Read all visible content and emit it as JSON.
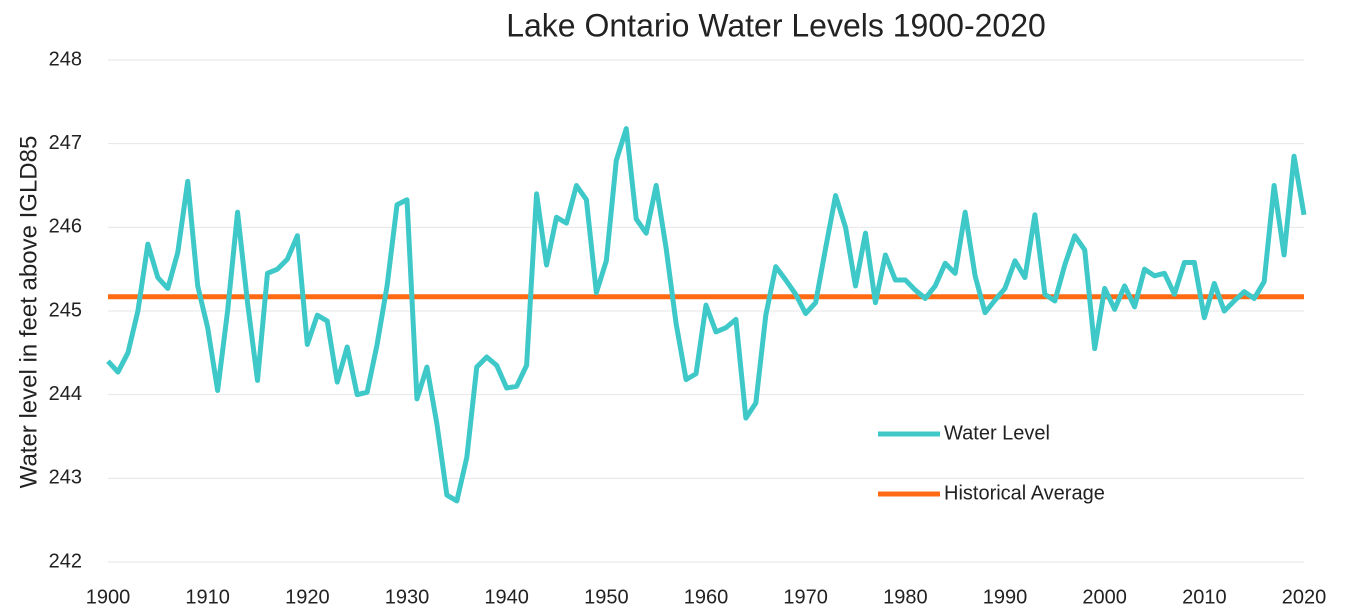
{
  "chart_data": {
    "type": "line",
    "title": "Lake Ontario Water Levels 1900-2020",
    "y_label": "Water level in feet above IGLD85",
    "x": [
      1900,
      1901,
      1902,
      1903,
      1904,
      1905,
      1906,
      1907,
      1908,
      1909,
      1910,
      1911,
      1912,
      1913,
      1914,
      1915,
      1916,
      1917,
      1918,
      1919,
      1920,
      1921,
      1922,
      1923,
      1924,
      1925,
      1926,
      1927,
      1928,
      1929,
      1930,
      1931,
      1932,
      1933,
      1934,
      1935,
      1936,
      1937,
      1938,
      1939,
      1940,
      1941,
      1942,
      1943,
      1944,
      1945,
      1946,
      1947,
      1948,
      1949,
      1950,
      1951,
      1952,
      1953,
      1954,
      1955,
      1956,
      1957,
      1958,
      1959,
      1960,
      1961,
      1962,
      1963,
      1964,
      1965,
      1966,
      1967,
      1968,
      1969,
      1970,
      1971,
      1972,
      1973,
      1974,
      1975,
      1976,
      1977,
      1978,
      1979,
      1980,
      1981,
      1982,
      1983,
      1984,
      1985,
      1986,
      1987,
      1988,
      1989,
      1990,
      1991,
      1992,
      1993,
      1994,
      1995,
      1996,
      1997,
      1998,
      1999,
      2000,
      2001,
      2002,
      2003,
      2004,
      2005,
      2006,
      2007,
      2008,
      2009,
      2010,
      2011,
      2012,
      2013,
      2014,
      2015,
      2016,
      2017,
      2018,
      2019,
      2020
    ],
    "series": [
      {
        "name": "Water Level",
        "color": "#3ec8c8",
        "values": [
          244.4,
          244.27,
          244.5,
          245.0,
          245.8,
          245.4,
          245.27,
          245.7,
          246.55,
          245.3,
          244.8,
          244.05,
          245.0,
          246.18,
          245.1,
          244.17,
          245.45,
          245.5,
          245.62,
          245.9,
          244.6,
          244.95,
          244.88,
          244.15,
          244.57,
          244.0,
          244.03,
          244.6,
          245.3,
          246.27,
          246.33,
          243.95,
          244.33,
          243.65,
          242.8,
          242.73,
          243.25,
          244.33,
          244.45,
          244.35,
          244.08,
          244.1,
          244.35,
          246.4,
          245.55,
          246.12,
          246.05,
          246.5,
          246.33,
          245.22,
          245.6,
          246.8,
          247.18,
          246.1,
          245.93,
          246.5,
          245.75,
          244.85,
          244.18,
          244.25,
          245.07,
          244.75,
          244.8,
          244.9,
          243.72,
          243.9,
          244.95,
          245.53,
          245.37,
          245.2,
          244.97,
          245.1,
          245.75,
          246.38,
          246.0,
          245.3,
          245.93,
          245.1,
          245.67,
          245.37,
          245.37,
          245.25,
          245.15,
          245.3,
          245.57,
          245.45,
          246.18,
          245.42,
          244.98,
          245.13,
          245.27,
          245.6,
          245.4,
          246.15,
          245.2,
          245.12,
          245.55,
          245.9,
          245.73,
          244.55,
          245.27,
          245.02,
          245.3,
          245.05,
          245.5,
          245.42,
          245.45,
          245.2,
          245.58,
          245.58,
          244.92,
          245.33,
          245.0,
          245.12,
          245.23,
          245.15,
          245.35,
          246.5,
          245.67,
          246.85,
          246.15
        ]
      },
      {
        "name": "Historical Average",
        "color": "#ff6a13",
        "x": [
          1900,
          2020
        ],
        "values": [
          245.17,
          245.17
        ]
      }
    ],
    "xlim": [
      1900,
      2020
    ],
    "xticks": [
      1900,
      1910,
      1920,
      1930,
      1940,
      1950,
      1960,
      1970,
      1980,
      1990,
      2000,
      2010,
      2020
    ],
    "ylim": [
      242,
      248
    ],
    "yticks": [
      242,
      243,
      244,
      245,
      246,
      247,
      248
    ],
    "grid": true,
    "legend": "lower right"
  }
}
